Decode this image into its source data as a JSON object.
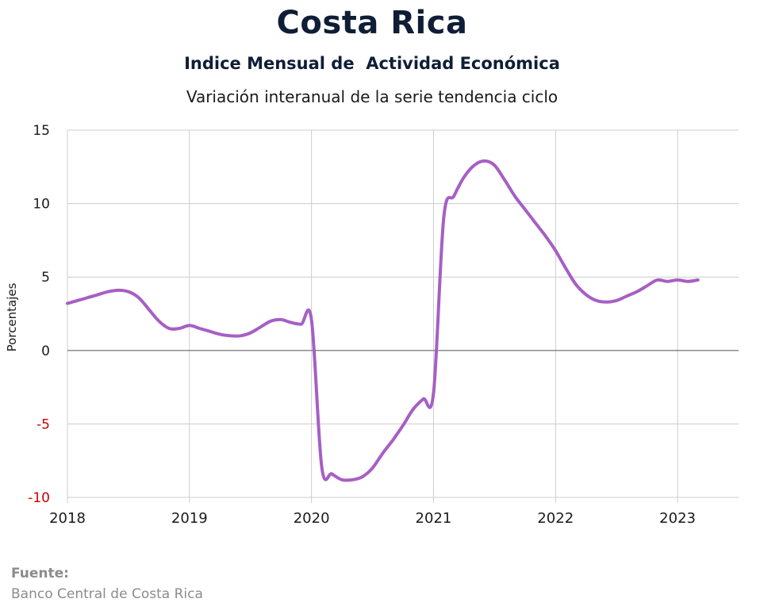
{
  "header": {
    "title": "Costa Rica",
    "subtitle": "Indice Mensual de  Actividad Económica",
    "subtitle2": "Variación interanual de la serie tendencia ciclo"
  },
  "source": {
    "label": "Fuente:",
    "text": "Banco Central de Costa Rica"
  },
  "colors": {
    "line": "#a65fc4",
    "grid": "#cccccc",
    "zero_line": "#808080",
    "negative_tick": "#cc0000",
    "title": "#0f1e36",
    "source": "#8c8c8c"
  },
  "chart_data": {
    "type": "line",
    "title": "Costa Rica",
    "subtitle": "Indice Mensual de  Actividad Económica",
    "ylabel": "Porcentajes",
    "xlabel": "",
    "ylim": [
      -10,
      15
    ],
    "yticks": [
      15,
      10,
      5,
      0,
      -5,
      -10
    ],
    "xlim": [
      2018,
      2023.5
    ],
    "xticks": [
      "2018",
      "2019",
      "2020",
      "2021",
      "2022",
      "2023"
    ],
    "grid": true,
    "legend": "none",
    "series": [
      {
        "x": [
          "2018-01",
          "2018-02",
          "2018-03",
          "2018-04",
          "2018-05",
          "2018-06",
          "2018-07",
          "2018-08",
          "2018-09",
          "2018-10",
          "2018-11",
          "2018-12",
          "2019-01",
          "2019-02",
          "2019-03",
          "2019-04",
          "2019-05",
          "2019-06",
          "2019-07",
          "2019-08",
          "2019-09",
          "2019-10",
          "2019-11",
          "2019-12",
          "2020-01",
          "2020-02",
          "2020-03",
          "2020-04",
          "2020-05",
          "2020-06",
          "2020-07",
          "2020-08",
          "2020-09",
          "2020-10",
          "2020-11",
          "2020-12",
          "2021-01",
          "2021-02",
          "2021-03",
          "2021-04",
          "2021-05",
          "2021-06",
          "2021-07",
          "2021-08",
          "2021-09",
          "2021-10",
          "2021-11",
          "2021-12",
          "2022-01",
          "2022-02",
          "2022-03",
          "2022-04",
          "2022-05",
          "2022-06",
          "2022-07",
          "2022-08",
          "2022-09",
          "2022-10",
          "2022-11",
          "2022-12",
          "2023-01",
          "2023-02",
          "2023-03"
        ],
        "values": [
          3.2,
          3.4,
          3.6,
          3.8,
          4.0,
          4.1,
          4.0,
          3.6,
          2.8,
          2.0,
          1.5,
          1.5,
          1.7,
          1.5,
          1.3,
          1.1,
          1.0,
          1.0,
          1.2,
          1.6,
          2.0,
          2.1,
          1.9,
          1.8,
          2.1,
          -7.9,
          -8.4,
          -8.8,
          -8.8,
          -8.6,
          -8.0,
          -7.0,
          -6.1,
          -5.1,
          -4.0,
          -3.3,
          -2.9,
          9.0,
          10.5,
          11.8,
          12.6,
          12.9,
          12.6,
          11.6,
          10.5,
          9.6,
          8.7,
          7.8,
          6.8,
          5.6,
          4.5,
          3.8,
          3.4,
          3.3,
          3.4,
          3.7,
          4.0,
          4.4,
          4.8,
          4.7,
          4.8,
          4.7,
          4.8
        ]
      }
    ]
  }
}
